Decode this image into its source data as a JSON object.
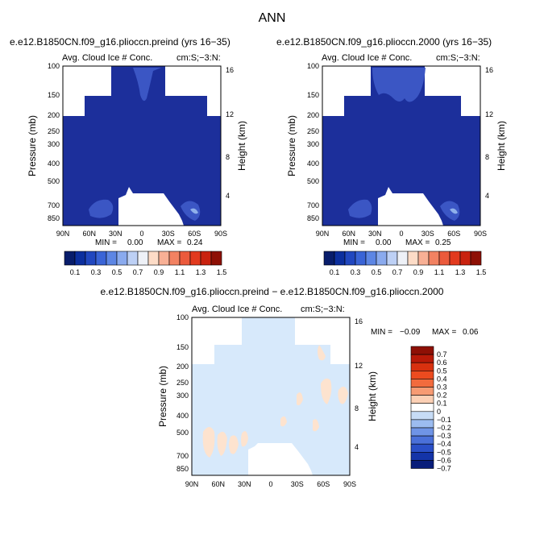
{
  "figure": {
    "title": "ANN",
    "colors": {
      "background": "#ffffff",
      "blue_fill": "#1c2f9b",
      "blue_mid": "#3b56c4",
      "blue_light": "#8fb0ea",
      "diff_light_blue": "#d7e9fb",
      "diff_light_orange": "#fde3cf"
    }
  },
  "chart_data": [
    {
      "id": "preind",
      "type": "heatmap",
      "title": "e.e12.B1850CN.f09_g16.pliocc​n.preind (yrs 16−35)",
      "subtitle_left": "Avg. Cloud Ice # Conc.",
      "subtitle_right": "cm:S;−3:N:",
      "xlabel": "",
      "ylabel": "Pressure (mb)",
      "ylabel_right": "Height (km)",
      "x_ticks": [
        "90N",
        "60N",
        "30N",
        "0",
        "30S",
        "60S",
        "90S"
      ],
      "y_ticks": [
        "100",
        "150",
        "200",
        "250",
        "300",
        "400",
        "500",
        "700",
        "850"
      ],
      "y_ticks_right": [
        "16",
        "12",
        "8",
        "4"
      ],
      "min_label": "MIN =",
      "min_value": "0.00",
      "max_label": "MAX =",
      "max_value": "0.24",
      "colorbar_labels": [
        "0.1",
        "0.3",
        "0.5",
        "0.7",
        "0.9",
        "1.1",
        "1.3",
        "1.5"
      ],
      "colorbar_colors": [
        "#081d6b",
        "#0c2f9e",
        "#2147bf",
        "#3a64d6",
        "#5d86e4",
        "#8aaaee",
        "#bdd0f5",
        "#eef1f7",
        "#fddcc7",
        "#f8b095",
        "#f28262",
        "#eb5a3c",
        "#e23a1e",
        "#c9220f",
        "#8e1005"
      ]
    },
    {
      "id": "y2000",
      "type": "heatmap",
      "title": "e.e12.B1850CN.f09_g16.pliocc​n.2000 (yrs 16−35)",
      "subtitle_left": "Avg. Cloud Ice # Conc.",
      "subtitle_right": "cm:S;−3:N:",
      "xlabel": "",
      "ylabel": "Pressure (mb)",
      "ylabel_right": "Height (km)",
      "x_ticks": [
        "90N",
        "60N",
        "30N",
        "0",
        "30S",
        "60S",
        "90S"
      ],
      "y_ticks": [
        "100",
        "150",
        "200",
        "250",
        "300",
        "400",
        "500",
        "700",
        "850"
      ],
      "y_ticks_right": [
        "16",
        "12",
        "8",
        "4"
      ],
      "min_label": "MIN =",
      "min_value": "0.00",
      "max_label": "MAX =",
      "max_value": "0.25",
      "colorbar_labels": [
        "0.1",
        "0.3",
        "0.5",
        "0.7",
        "0.9",
        "1.1",
        "1.3",
        "1.5"
      ],
      "colorbar_colors": [
        "#081d6b",
        "#0c2f9e",
        "#2147bf",
        "#3a64d6",
        "#5d86e4",
        "#8aaaee",
        "#bdd0f5",
        "#eef1f7",
        "#fddcc7",
        "#f8b095",
        "#f28262",
        "#eb5a3c",
        "#e23a1e",
        "#c9220f",
        "#8e1005"
      ]
    },
    {
      "id": "diff",
      "type": "heatmap",
      "title": "e.e12.B1850CN.f09_g16.pliocc​n.preind − e.e12.B1850CN.f09_g16.pliocc​n.2000",
      "subtitle_left": "Avg. Cloud Ice # Conc.",
      "subtitle_right": "cm:S;−3:N:",
      "xlabel": "",
      "ylabel": "Pressure (mb)",
      "ylabel_right": "Height (km)",
      "x_ticks": [
        "90N",
        "60N",
        "30N",
        "0",
        "30S",
        "60S",
        "90S"
      ],
      "y_ticks": [
        "100",
        "150",
        "200",
        "250",
        "300",
        "400",
        "500",
        "700",
        "850"
      ],
      "y_ticks_right": [
        "16",
        "12",
        "8",
        "4"
      ],
      "min_label": "MIN =",
      "min_value": "−0.09",
      "max_label": "MAX =",
      "max_value": "0.06",
      "colorbar_labels": [
        "0.7",
        "0.6",
        "0.5",
        "0.4",
        "0.3",
        "0.2",
        "0.1",
        "0",
        "−0.1",
        "−0.2",
        "−0.3",
        "−0.4",
        "−0.5",
        "−0.6",
        "−0.7"
      ],
      "colorbar_colors": [
        "#8e1005",
        "#b81a08",
        "#d8310f",
        "#ec4b1f",
        "#f26b3d",
        "#f79b73",
        "#fcd0b5",
        "#ffffff",
        "#c7dcf6",
        "#9cbcf0",
        "#6f94e6",
        "#4a70d9",
        "#2a4fc7",
        "#1434a8",
        "#081d7a"
      ]
    }
  ]
}
